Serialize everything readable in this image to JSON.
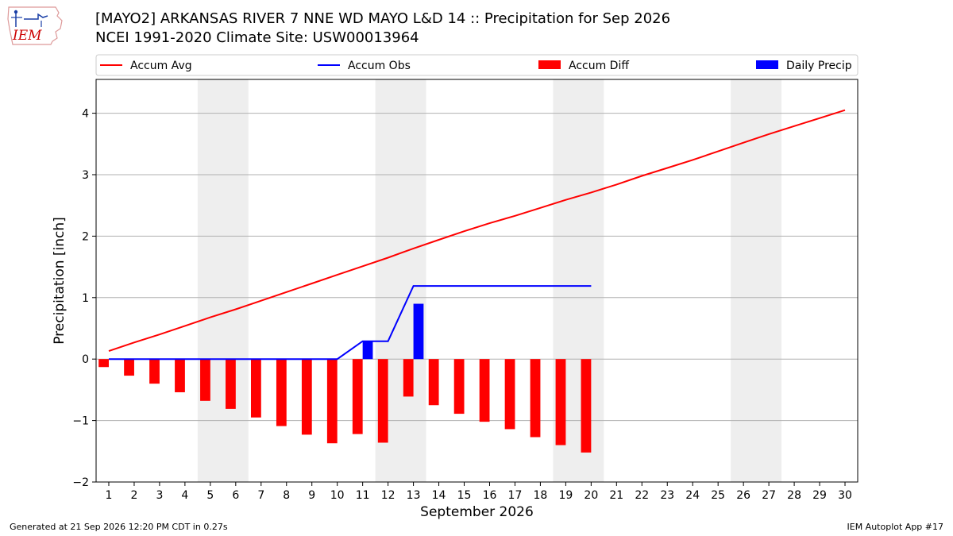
{
  "header": {
    "title_line1": "[MAYO2] ARKANSAS RIVER 7 NNE WD MAYO L&D 14 :: Precipitation for Sep 2026",
    "title_line2": "NCEI 1991-2020 Climate Site: USW00013964",
    "logo_text": "IEM"
  },
  "footer": {
    "left": "Generated at 21 Sep 2026 12:20 PM CDT in 0.27s",
    "right": "IEM Autoplot App #17"
  },
  "chart_data": {
    "type": "bar",
    "xlabel": "September 2026",
    "ylabel": "Precipitation [inch]",
    "xlim": [
      0.5,
      30.5
    ],
    "ylim": [
      -2.0,
      4.55
    ],
    "yticks": [
      -2,
      -1,
      0,
      1,
      2,
      3,
      4
    ],
    "ytick_labels": [
      "−2",
      "−1",
      "0",
      "1",
      "2",
      "3",
      "4"
    ],
    "x_days": [
      1,
      2,
      3,
      4,
      5,
      6,
      7,
      8,
      9,
      10,
      11,
      12,
      13,
      14,
      15,
      16,
      17,
      18,
      19,
      20,
      21,
      22,
      23,
      24,
      25,
      26,
      27,
      28,
      29,
      30
    ],
    "grid": "horizontal",
    "weekend_shading": [
      [
        4.5,
        6.5
      ],
      [
        11.5,
        13.5
      ],
      [
        18.5,
        20.5
      ],
      [
        25.5,
        27.5
      ]
    ],
    "colors": {
      "avg": "#ff0000",
      "obs": "#0000ff",
      "diff": "#ff0000",
      "daily": "#0000ff",
      "weekend": "#eeeeee"
    },
    "legend": {
      "placement": "top",
      "entries": [
        {
          "label": "Accum Avg",
          "kind": "line",
          "color": "#ff0000"
        },
        {
          "label": "Accum Obs",
          "kind": "line",
          "color": "#0000ff"
        },
        {
          "label": "Accum Diff",
          "kind": "box",
          "color": "#ff0000"
        },
        {
          "label": "Daily Precip",
          "kind": "box",
          "color": "#0000ff"
        }
      ]
    },
    "series": [
      {
        "name": "Accum Avg",
        "type": "line",
        "x": [
          1,
          2,
          3,
          4,
          5,
          6,
          7,
          8,
          9,
          10,
          11,
          12,
          13,
          14,
          15,
          16,
          17,
          18,
          19,
          20,
          21,
          22,
          23,
          24,
          25,
          26,
          27,
          28,
          29,
          30
        ],
        "values": [
          0.13,
          0.27,
          0.4,
          0.54,
          0.68,
          0.81,
          0.95,
          1.09,
          1.23,
          1.37,
          1.51,
          1.65,
          1.8,
          1.94,
          2.08,
          2.21,
          2.33,
          2.46,
          2.59,
          2.71,
          2.84,
          2.98,
          3.11,
          3.24,
          3.38,
          3.52,
          3.66,
          3.79,
          3.92,
          4.05
        ]
      },
      {
        "name": "Accum Obs",
        "type": "line",
        "x": [
          1,
          2,
          3,
          4,
          5,
          6,
          7,
          8,
          9,
          10,
          11,
          12,
          13,
          14,
          15,
          16,
          17,
          18,
          19,
          20
        ],
        "values": [
          0,
          0,
          0,
          0,
          0,
          0,
          0,
          0,
          0,
          0,
          0.29,
          0.29,
          1.19,
          1.19,
          1.19,
          1.19,
          1.19,
          1.19,
          1.19,
          1.19
        ]
      },
      {
        "name": "Accum Diff",
        "type": "bar",
        "offset": -0.2,
        "x": [
          1,
          2,
          3,
          4,
          5,
          6,
          7,
          8,
          9,
          10,
          11,
          12,
          13,
          14,
          15,
          16,
          17,
          18,
          19,
          20
        ],
        "values": [
          -0.13,
          -0.27,
          -0.4,
          -0.54,
          -0.68,
          -0.81,
          -0.95,
          -1.09,
          -1.23,
          -1.37,
          -1.22,
          -1.36,
          -0.61,
          -0.75,
          -0.89,
          -1.02,
          -1.14,
          -1.27,
          -1.4,
          -1.52
        ]
      },
      {
        "name": "Daily Precip",
        "type": "bar",
        "offset": 0.2,
        "x": [
          1,
          2,
          3,
          4,
          5,
          6,
          7,
          8,
          9,
          10,
          11,
          12,
          13,
          14,
          15,
          16,
          17,
          18,
          19,
          20
        ],
        "values": [
          0,
          0,
          0,
          0,
          0,
          0,
          0,
          0,
          0,
          0,
          0.29,
          0,
          0.9,
          0,
          0,
          0,
          0,
          0,
          0,
          0
        ]
      }
    ]
  }
}
